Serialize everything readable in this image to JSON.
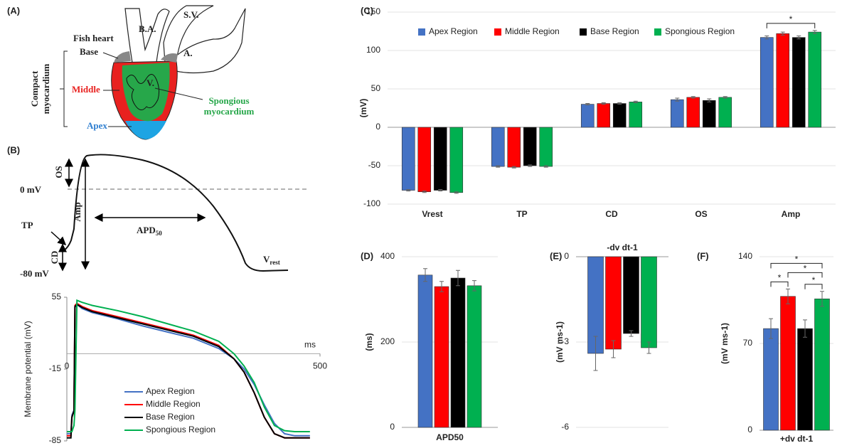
{
  "panel_a": {
    "label": "(A)",
    "fish_heart": "Fish heart",
    "ba": "B.A.",
    "sv": "S.V.",
    "a": "A.",
    "base": "Base",
    "middle": "Middle",
    "apex": "Apex",
    "v": "V.",
    "spongious": [
      "Spongious",
      "myocardium"
    ],
    "compact": [
      "Compact",
      "myocardium"
    ]
  },
  "panel_b": {
    "label": "(B)",
    "os": "OS",
    "zero": "0 mV",
    "amp": "Amp",
    "apd": [
      "APD",
      "50"
    ],
    "tp": "TP",
    "cd": "CD",
    "minus80": "-80 mV",
    "vrest": [
      "V",
      "rest"
    ]
  },
  "chart_data": [
    {
      "type": "line",
      "x_label": "ms",
      "y_label": "Membrane potential (mV)",
      "x": [
        0,
        8,
        10,
        14,
        16,
        20,
        30,
        50,
        100,
        150,
        200,
        250,
        300,
        330,
        350,
        370,
        390,
        410,
        430,
        450,
        480
      ],
      "series": [
        {
          "name": "Apex Region",
          "color": "#4472c4",
          "values": [
            -78,
            -78,
            -60,
            -55,
            45,
            48,
            44,
            40,
            34,
            27,
            21,
            15,
            5,
            -5,
            -15,
            -30,
            -50,
            -68,
            -78,
            -80,
            -80
          ]
        },
        {
          "name": "Middle Region",
          "color": "#ff0000",
          "values": [
            -80,
            -80,
            -62,
            -56,
            47,
            49,
            46,
            42,
            36,
            30,
            24,
            18,
            8,
            -5,
            -18,
            -38,
            -62,
            -78,
            -82,
            -82,
            -82
          ]
        },
        {
          "name": "Base Region",
          "color": "#000000",
          "values": [
            -82,
            -82,
            -62,
            -56,
            46,
            48,
            45,
            41,
            35,
            29,
            23,
            17,
            7,
            -5,
            -18,
            -38,
            -62,
            -78,
            -82,
            -82,
            -82
          ]
        },
        {
          "name": "Spongious Region",
          "color": "#00b050",
          "values": [
            -76,
            -76,
            -76,
            -70,
            -55,
            52,
            50,
            47,
            42,
            36,
            29,
            22,
            12,
            0,
            -12,
            -28,
            -52,
            -70,
            -75,
            -76,
            -76
          ]
        }
      ],
      "xlim": [
        0,
        500
      ],
      "xticks": [
        0,
        500
      ],
      "ylim": [
        -85,
        55
      ],
      "yticks": [
        55,
        -15,
        -85
      ],
      "legend": "lower left"
    },
    {
      "type": "bar",
      "panel": "(C)",
      "y_label": "(mV)",
      "categories": [
        "Vrest",
        "TP",
        "CD",
        "OS",
        "Amp"
      ],
      "series": [
        {
          "name": "Apex Region",
          "color": "#4472c4",
          "values": [
            -82,
            -51,
            30,
            36,
            117
          ],
          "errors": [
            1,
            1,
            1,
            2,
            2
          ]
        },
        {
          "name": "Middle Region",
          "color": "#ff0000",
          "values": [
            -84,
            -52,
            31,
            39,
            122
          ],
          "errors": [
            1,
            1,
            1,
            1,
            2
          ]
        },
        {
          "name": "Base Region",
          "color": "#000000",
          "values": [
            -82,
            -50,
            31,
            35,
            117
          ],
          "errors": [
            1,
            1,
            1,
            2,
            2
          ]
        },
        {
          "name": "Spongious Region",
          "color": "#00b050",
          "values": [
            -85,
            -51,
            33,
            39,
            124
          ],
          "errors": [
            1,
            1,
            1,
            1,
            2
          ]
        }
      ],
      "ylim": [
        -100,
        150
      ],
      "yticks": [
        -100,
        -50,
        0,
        50,
        100,
        150
      ],
      "grid": true,
      "legend": "top",
      "significance": [
        {
          "category": 4,
          "from": 0,
          "to": 3,
          "label": "*"
        }
      ]
    },
    {
      "type": "bar",
      "panel": "(D)",
      "y_label": "(ms)",
      "categories": [
        "APD50"
      ],
      "series": [
        {
          "color": "#4472c4",
          "values": [
            357
          ],
          "errors": [
            15
          ]
        },
        {
          "color": "#ff0000",
          "values": [
            330
          ],
          "errors": [
            12
          ]
        },
        {
          "color": "#000000",
          "values": [
            350
          ],
          "errors": [
            18
          ]
        },
        {
          "color": "#00b050",
          "values": [
            332
          ],
          "errors": [
            12
          ]
        }
      ],
      "ylim": [
        0,
        400
      ],
      "yticks": [
        0,
        200,
        400
      ],
      "grid": true
    },
    {
      "type": "bar",
      "panel": "(E)",
      "title": "-dv dt-1",
      "y_label": "(mV ms-1)",
      "categories": [
        null
      ],
      "series": [
        {
          "color": "#4472c4",
          "values": [
            -3.4
          ],
          "errors": [
            0.6
          ]
        },
        {
          "color": "#ff0000",
          "values": [
            -3.25
          ],
          "errors": [
            0.3
          ]
        },
        {
          "color": "#000000",
          "values": [
            -2.7
          ],
          "errors": [
            0.1
          ]
        },
        {
          "color": "#00b050",
          "values": [
            -3.2
          ],
          "errors": [
            0.2
          ]
        }
      ],
      "ylim": [
        -6,
        0
      ],
      "yticks": [
        0,
        -3,
        -6
      ],
      "grid": true
    },
    {
      "type": "bar",
      "panel": "(F)",
      "y_label": "(mV ms-1)",
      "categories": [
        "+dv dt-1"
      ],
      "series": [
        {
          "color": "#4472c4",
          "values": [
            82
          ],
          "errors": [
            8
          ]
        },
        {
          "color": "#ff0000",
          "values": [
            108
          ],
          "errors": [
            6
          ]
        },
        {
          "color": "#000000",
          "values": [
            82
          ],
          "errors": [
            7
          ]
        },
        {
          "color": "#00b050",
          "values": [
            106
          ],
          "errors": [
            6
          ]
        }
      ],
      "ylim": [
        0,
        140
      ],
      "yticks": [
        0,
        70,
        140
      ],
      "grid": true,
      "significance": [
        {
          "category": 0,
          "from": 2,
          "to": 3,
          "label": "*"
        },
        {
          "category": 0,
          "from": 0,
          "to": 1,
          "label": "*"
        },
        {
          "category": 0,
          "from": 1,
          "to": 3,
          "label": "*"
        },
        {
          "category": 0,
          "from": 0,
          "to": 3,
          "label": "*"
        }
      ]
    }
  ]
}
